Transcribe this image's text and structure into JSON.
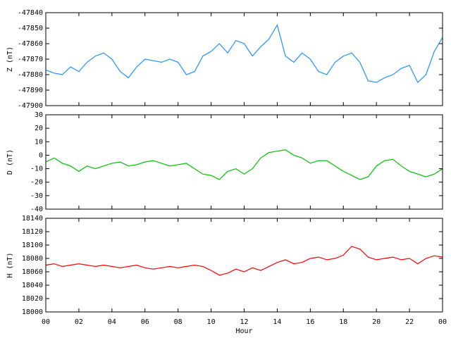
{
  "chart_data": [
    {
      "type": "line",
      "ylabel": "Z (nT)",
      "ylim": [
        -47900,
        -47840
      ],
      "yticks": [
        -47900,
        -47890,
        -47880,
        -47870,
        -47860,
        -47850,
        -47840
      ],
      "x": [
        0,
        0.5,
        1,
        1.5,
        2,
        2.5,
        3,
        3.5,
        4,
        4.5,
        5,
        5.5,
        6,
        6.5,
        7,
        7.5,
        8,
        8.5,
        9,
        9.5,
        10,
        10.5,
        11,
        11.5,
        12,
        12.5,
        13,
        13.5,
        14,
        14.5,
        15,
        15.5,
        16,
        16.5,
        17,
        17.5,
        18,
        18.5,
        19,
        19.5,
        20,
        20.5,
        21,
        21.5,
        22,
        22.5,
        23,
        23.5,
        24
      ],
      "series": [
        {
          "color": "#1e90ff",
          "values": [
            -47877,
            -47879,
            -47880,
            -47875,
            -47878,
            -47872,
            -47868,
            -47866,
            -47870,
            -47878,
            -47882,
            -47875,
            -47870,
            -47871,
            -47872,
            -47870,
            -47872,
            -47880,
            -47878,
            -47868,
            -47865,
            -47860,
            -47866,
            -47858,
            -47860,
            -47868,
            -47862,
            -47857,
            -47848,
            -47868,
            -47872,
            -47866,
            -47870,
            -47878,
            -47880,
            -47872,
            -47868,
            -47866,
            -47872,
            -47884,
            -47885,
            -47882,
            -47880,
            -47876,
            -47874,
            -47885,
            -47880,
            -47865,
            -47856
          ]
        }
      ]
    },
    {
      "type": "line",
      "ylabel": "D (nT)",
      "ylim": [
        -40,
        30
      ],
      "yticks": [
        -40,
        -30,
        -20,
        -10,
        0,
        10,
        20,
        30
      ],
      "x": [
        0,
        0.5,
        1,
        1.5,
        2,
        2.5,
        3,
        3.5,
        4,
        4.5,
        5,
        5.5,
        6,
        6.5,
        7,
        7.5,
        8,
        8.5,
        9,
        9.5,
        10,
        10.5,
        11,
        11.5,
        12,
        12.5,
        13,
        13.5,
        14,
        14.5,
        15,
        15.5,
        16,
        16.5,
        17,
        17.5,
        18,
        18.5,
        19,
        19.5,
        20,
        20.5,
        21,
        21.5,
        22,
        22.5,
        23,
        23.5,
        24
      ],
      "series": [
        {
          "color": "#00c000",
          "values": [
            -5,
            -2,
            -6,
            -8,
            -12,
            -8,
            -10,
            -8,
            -6,
            -5,
            -8,
            -7,
            -5,
            -4,
            -6,
            -8,
            -7,
            -6,
            -10,
            -14,
            -15,
            -18,
            -12,
            -10,
            -14,
            -10,
            -2,
            2,
            3,
            4,
            0,
            -2,
            -6,
            -4,
            -4,
            -8,
            -12,
            -15,
            -18,
            -16,
            -8,
            -4,
            -3,
            -8,
            -12,
            -14,
            -16,
            -14,
            -10
          ]
        }
      ]
    },
    {
      "type": "line",
      "ylabel": "H (nT)",
      "xlabel": "Hour",
      "ylim": [
        18000,
        18140
      ],
      "yticks": [
        18000,
        18020,
        18040,
        18060,
        18080,
        18100,
        18120,
        18140
      ],
      "xlim": [
        0,
        24
      ],
      "xticks": [
        {
          "value": 0,
          "label": "00"
        },
        {
          "value": 2,
          "label": "02"
        },
        {
          "value": 4,
          "label": "04"
        },
        {
          "value": 6,
          "label": "06"
        },
        {
          "value": 8,
          "label": "08"
        },
        10,
        12,
        14,
        16,
        18,
        20,
        22,
        {
          "value": 24,
          "label": "00"
        }
      ],
      "x": [
        0,
        0.5,
        1,
        1.5,
        2,
        2.5,
        3,
        3.5,
        4,
        4.5,
        5,
        5.5,
        6,
        6.5,
        7,
        7.5,
        8,
        8.5,
        9,
        9.5,
        10,
        10.5,
        11,
        11.5,
        12,
        12.5,
        13,
        13.5,
        14,
        14.5,
        15,
        15.5,
        16,
        16.5,
        17,
        17.5,
        18,
        18.5,
        19,
        19.5,
        20,
        20.5,
        21,
        21.5,
        22,
        22.5,
        23,
        23.5,
        24
      ],
      "series": [
        {
          "color": "#ff0000",
          "values": [
            18070,
            18072,
            18068,
            18070,
            18072,
            18070,
            18068,
            18070,
            18068,
            18066,
            18068,
            18070,
            18066,
            18064,
            18066,
            18068,
            18066,
            18068,
            18070,
            18068,
            18062,
            18055,
            18058,
            18064,
            18060,
            18066,
            18062,
            18068,
            18074,
            18078,
            18072,
            18074,
            18080,
            18082,
            18078,
            18080,
            18085,
            18098,
            18094,
            18082,
            18078,
            18080,
            18082,
            18078,
            18080,
            18072,
            18080,
            18084,
            18082
          ]
        }
      ]
    }
  ]
}
